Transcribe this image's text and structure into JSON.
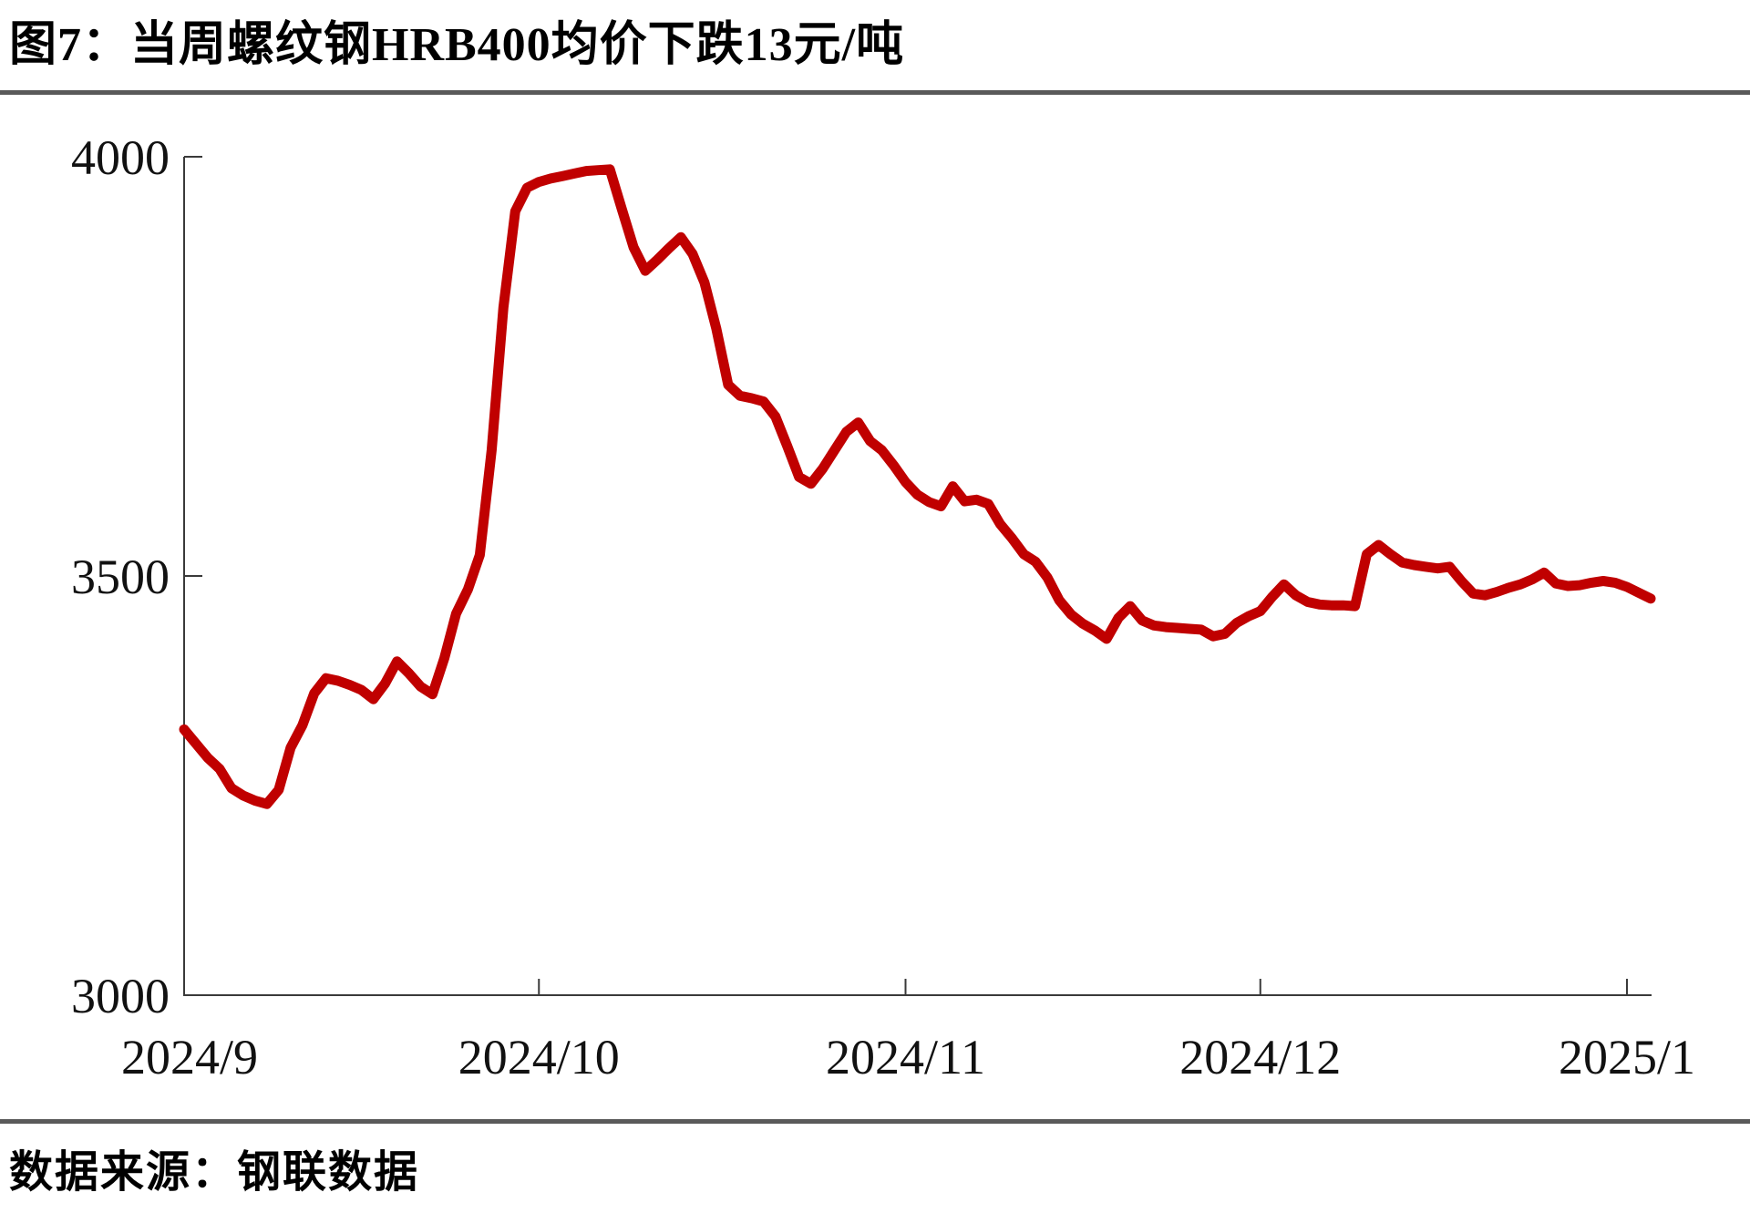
{
  "title": "图7：当周螺纹钢HRB400均价下跌13元/吨",
  "source": "数据来源：钢联数据",
  "colors": {
    "line": "#C00000",
    "axis": "#3a3a3a",
    "tick_text": "#111111",
    "divider": "#5a5a5a"
  },
  "chart_data": {
    "type": "line",
    "title": "当周螺纹钢HRB400均价下跌13元/吨",
    "series_name": "螺纹钢HRB400均价(元/吨)",
    "xlabel": "",
    "ylabel": "",
    "ylim": [
      3000,
      4000
    ],
    "yticks": [
      3000,
      3500,
      4000
    ],
    "xticks": [
      {
        "label": "2024/9",
        "date": "2024/9/1"
      },
      {
        "label": "2024/10",
        "date": "2024/10/1"
      },
      {
        "label": "2024/11",
        "date": "2024/11/1"
      },
      {
        "label": "2024/12",
        "date": "2024/12/1"
      },
      {
        "label": "2025/1",
        "date": "2025/1/1"
      }
    ],
    "grid": false,
    "legend": null,
    "dates": [
      "2024/9/1",
      "2024/9/2",
      "2024/9/3",
      "2024/9/4",
      "2024/9/5",
      "2024/9/6",
      "2024/9/7",
      "2024/9/8",
      "2024/9/9",
      "2024/9/10",
      "2024/9/11",
      "2024/9/12",
      "2024/9/13",
      "2024/9/14",
      "2024/9/15",
      "2024/9/16",
      "2024/9/17",
      "2024/9/18",
      "2024/9/19",
      "2024/9/20",
      "2024/9/21",
      "2024/9/22",
      "2024/9/23",
      "2024/9/24",
      "2024/9/25",
      "2024/9/26",
      "2024/9/27",
      "2024/9/28",
      "2024/9/29",
      "2024/9/30",
      "2024/10/1",
      "2024/10/2",
      "2024/10/3",
      "2024/10/4",
      "2024/10/5",
      "2024/10/6",
      "2024/10/7",
      "2024/10/8",
      "2024/10/9",
      "2024/10/10",
      "2024/10/11",
      "2024/10/12",
      "2024/10/13",
      "2024/10/14",
      "2024/10/15",
      "2024/10/16",
      "2024/10/17",
      "2024/10/18",
      "2024/10/19",
      "2024/10/20",
      "2024/10/21",
      "2024/10/22",
      "2024/10/23",
      "2024/10/24",
      "2024/10/25",
      "2024/10/26",
      "2024/10/27",
      "2024/10/28",
      "2024/10/29",
      "2024/10/30",
      "2024/10/31",
      "2024/11/1",
      "2024/11/2",
      "2024/11/3",
      "2024/11/4",
      "2024/11/5",
      "2024/11/6",
      "2024/11/7",
      "2024/11/8",
      "2024/11/9",
      "2024/11/10",
      "2024/11/11",
      "2024/11/12",
      "2024/11/13",
      "2024/11/14",
      "2024/11/15",
      "2024/11/16",
      "2024/11/17",
      "2024/11/18",
      "2024/11/19",
      "2024/11/20",
      "2024/11/21",
      "2024/11/22",
      "2024/11/23",
      "2024/11/24",
      "2024/11/25",
      "2024/11/26",
      "2024/11/27",
      "2024/11/28",
      "2024/11/29",
      "2024/11/30",
      "2024/12/1",
      "2024/12/2",
      "2024/12/3",
      "2024/12/4",
      "2024/12/5",
      "2024/12/6",
      "2024/12/7",
      "2024/12/8",
      "2024/12/9",
      "2024/12/10",
      "2024/12/11",
      "2024/12/12",
      "2024/12/13",
      "2024/12/14",
      "2024/12/15",
      "2024/12/16",
      "2024/12/17",
      "2024/12/18",
      "2024/12/19",
      "2024/12/20",
      "2024/12/21",
      "2024/12/22",
      "2024/12/23",
      "2024/12/24",
      "2024/12/25",
      "2024/12/26",
      "2024/12/27",
      "2024/12/28",
      "2024/12/29",
      "2024/12/30",
      "2024/12/31",
      "2025/1/1",
      "2025/1/2",
      "2025/1/3"
    ],
    "values": [
      3317,
      3300,
      3283,
      3270,
      3247,
      3238,
      3232,
      3228,
      3245,
      3295,
      3322,
      3360,
      3378,
      3375,
      3370,
      3364,
      3353,
      3372,
      3398,
      3384,
      3368,
      3359,
      3402,
      3455,
      3484,
      3525,
      3650,
      3820,
      3935,
      3963,
      3970,
      3974,
      3977,
      3980,
      3983,
      3984,
      3985,
      3938,
      3892,
      3864,
      3877,
      3891,
      3904,
      3884,
      3850,
      3795,
      3728,
      3715,
      3712,
      3708,
      3690,
      3655,
      3618,
      3610,
      3628,
      3650,
      3672,
      3683,
      3661,
      3650,
      3632,
      3612,
      3597,
      3588,
      3583,
      3607,
      3589,
      3591,
      3586,
      3562,
      3545,
      3526,
      3517,
      3498,
      3471,
      3454,
      3443,
      3435,
      3425,
      3450,
      3464,
      3447,
      3441,
      3439,
      3438,
      3437,
      3436,
      3428,
      3431,
      3444,
      3452,
      3458,
      3475,
      3490,
      3477,
      3469,
      3466,
      3465,
      3465,
      3464,
      3526,
      3537,
      3526,
      3516,
      3513,
      3511,
      3509,
      3511,
      3494,
      3479,
      3477,
      3481,
      3486,
      3490,
      3496,
      3504,
      3491,
      3488,
      3489,
      3492,
      3494,
      3492,
      3487,
      3480,
      3473
    ]
  }
}
